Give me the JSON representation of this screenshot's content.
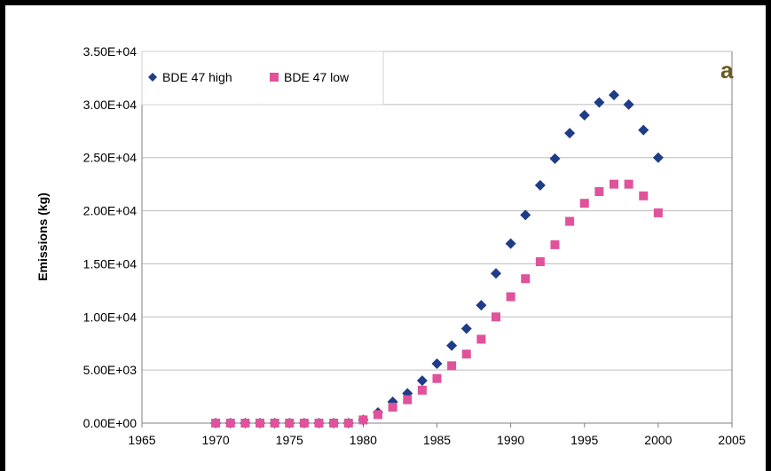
{
  "chart_data": {
    "type": "scatter",
    "title": "",
    "panel_label": "a",
    "xlabel": "",
    "ylabel": "Emissions (kg)",
    "xlim": [
      1965,
      2005
    ],
    "ylim": [
      0,
      35000
    ],
    "x_ticks": [
      1965,
      1970,
      1975,
      1980,
      1985,
      1990,
      1995,
      2000,
      2005
    ],
    "x_tick_labels": [
      "1965",
      "1970",
      "1975",
      "1980",
      "1985",
      "1990",
      "1995",
      "2000",
      "2005"
    ],
    "y_ticks": [
      0,
      5000,
      10000,
      15000,
      20000,
      25000,
      30000,
      35000
    ],
    "y_tick_labels": [
      "0.00E+00",
      "5.00E+03",
      "1.00E+04",
      "1.50E+04",
      "2.00E+04",
      "2.50E+04",
      "3.00E+04",
      "3.50E+04"
    ],
    "grid": "horizontal",
    "legend_position": "top-left",
    "series": [
      {
        "name": "BDE 47 high",
        "marker": "diamond",
        "color": "#1f3c88",
        "x": [
          1970,
          1971,
          1972,
          1973,
          1974,
          1975,
          1976,
          1977,
          1978,
          1979,
          1980,
          1981,
          1982,
          1983,
          1984,
          1985,
          1986,
          1987,
          1988,
          1989,
          1990,
          1991,
          1992,
          1993,
          1994,
          1995,
          1996,
          1997,
          1998,
          1999,
          2000
        ],
        "y": [
          0,
          0,
          0,
          0,
          0,
          0,
          0,
          0,
          0,
          0,
          300,
          1000,
          2000,
          2800,
          4000,
          5600,
          7300,
          8900,
          11100,
          14100,
          16900,
          19600,
          22400,
          24900,
          27300,
          29000,
          30200,
          30900,
          30000,
          27600,
          25000
        ]
      },
      {
        "name": "BDE 47 low",
        "marker": "square",
        "color": "#e0529c",
        "x": [
          1970,
          1971,
          1972,
          1973,
          1974,
          1975,
          1976,
          1977,
          1978,
          1979,
          1980,
          1981,
          1982,
          1983,
          1984,
          1985,
          1986,
          1987,
          1988,
          1989,
          1990,
          1991,
          1992,
          1993,
          1994,
          1995,
          1996,
          1997,
          1998,
          1999,
          2000
        ],
        "y": [
          0,
          0,
          0,
          0,
          0,
          0,
          0,
          0,
          0,
          0,
          300,
          800,
          1500,
          2200,
          3100,
          4200,
          5400,
          6500,
          7900,
          10000,
          11900,
          13600,
          15200,
          16800,
          19000,
          20700,
          21800,
          22500,
          22500,
          21400,
          19800
        ]
      }
    ]
  }
}
